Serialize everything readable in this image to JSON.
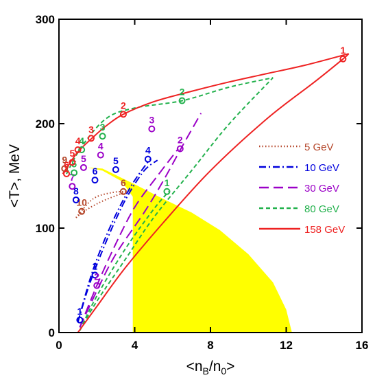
{
  "chart_data": {
    "type": "line",
    "title": "",
    "xlabel": "<nB/n0>",
    "xlabel_parts": [
      "<n",
      "B",
      "/n",
      "0",
      ">"
    ],
    "ylabel": "<T>, MeV",
    "xlim": [
      0,
      16
    ],
    "ylim": [
      0,
      300
    ],
    "x_ticks": [
      "0",
      "4",
      "8",
      "12",
      "16"
    ],
    "y_ticks": [
      "0",
      "100",
      "200",
      "300"
    ],
    "legend_position": "right",
    "shaded_region": {
      "color": "#ffff00",
      "description": "mixed-phase region",
      "boundary": [
        [
          3.9,
          0
        ],
        [
          3.9,
          130
        ],
        [
          3.3,
          145
        ],
        [
          2.3,
          155
        ],
        [
          1.5,
          158
        ],
        [
          2.3,
          157
        ],
        [
          4.0,
          142
        ],
        [
          5.5,
          128
        ],
        [
          7.0,
          115
        ],
        [
          8.5,
          98
        ],
        [
          10.0,
          75
        ],
        [
          11.3,
          48
        ],
        [
          12.0,
          22
        ],
        [
          12.3,
          0
        ]
      ]
    },
    "series": [
      {
        "name": "5 GeV",
        "color": "#b5472b",
        "dash": "1.5 3",
        "curves": [
          [
            [
              0.9,
              110
            ],
            [
              1.4,
              117
            ],
            [
              2.2,
              125
            ],
            [
              3.0,
              131
            ],
            [
              3.6,
              135
            ]
          ],
          [
            [
              0.9,
              110
            ],
            [
              1.8,
              128
            ],
            [
              2.8,
              134
            ],
            [
              3.6,
              135
            ]
          ]
        ],
        "markers": [
          {
            "x": 1.2,
            "y": 116,
            "label": "10"
          },
          {
            "x": 3.4,
            "y": 135,
            "label": "6"
          },
          {
            "x": 0.3,
            "y": 157,
            "label": "9"
          }
        ]
      },
      {
        "name": "10 GeV",
        "color": "#0000dd",
        "dash": "10 4 2 4",
        "curves": [
          [
            [
              1.0,
              10
            ],
            [
              1.5,
              40
            ],
            [
              2.0,
              65
            ],
            [
              2.8,
              100
            ],
            [
              3.6,
              130
            ],
            [
              4.5,
              155
            ],
            [
              5.2,
              165
            ]
          ],
          [
            [
              1.0,
              10
            ],
            [
              1.8,
              60
            ],
            [
              2.8,
              105
            ],
            [
              3.8,
              140
            ],
            [
              4.8,
              166
            ]
          ]
        ],
        "markers": [
          {
            "x": 1.1,
            "y": 12,
            "label": "1"
          },
          {
            "x": 1.9,
            "y": 55,
            "label": "2"
          },
          {
            "x": 0.9,
            "y": 127,
            "label": "8"
          },
          {
            "x": 1.9,
            "y": 146,
            "label": "6"
          },
          {
            "x": 3.0,
            "y": 156,
            "label": "5"
          },
          {
            "x": 4.7,
            "y": 166,
            "label": "4"
          }
        ]
      },
      {
        "name": "30 GeV",
        "color": "#9b00c7",
        "dash": "14 7",
        "curves": [
          [
            [
              1.1,
              5
            ],
            [
              2.0,
              40
            ],
            [
              3.0,
              75
            ],
            [
              4.5,
              115
            ],
            [
              5.5,
              145
            ],
            [
              6.5,
              178
            ],
            [
              7.5,
              210
            ]
          ],
          [
            [
              1.1,
              5
            ],
            [
              2.0,
              45
            ],
            [
              3.0,
              85
            ],
            [
              4.0,
              120
            ],
            [
              5.2,
              150
            ],
            [
              6.3,
              176
            ]
          ]
        ],
        "markers": [
          {
            "x": 2.0,
            "y": 45,
            "label": "2"
          },
          {
            "x": 0.7,
            "y": 140,
            "label": "7"
          },
          {
            "x": 1.3,
            "y": 158,
            "label": "5"
          },
          {
            "x": 2.2,
            "y": 170,
            "label": "4"
          },
          {
            "x": 4.9,
            "y": 195,
            "label": "3"
          },
          {
            "x": 6.4,
            "y": 176,
            "label": "2"
          }
        ]
      },
      {
        "name": "80 GeV",
        "color": "#22b14c",
        "dash": "6 4",
        "curves": [
          [
            [
              1.1,
              2
            ],
            [
              2.0,
              30
            ],
            [
              3.5,
              70
            ],
            [
              5.0,
              110
            ],
            [
              7.0,
              155
            ],
            [
              9.0,
              200
            ],
            [
              11.3,
              244
            ]
          ],
          [
            [
              1.1,
              2
            ],
            [
              2.0,
              35
            ],
            [
              3.5,
              80
            ],
            [
              5.0,
              118
            ],
            [
              5.8,
              135
            ]
          ],
          [
            [
              0.4,
              152
            ],
            [
              1.2,
              178
            ],
            [
              2.5,
              205
            ],
            [
              4.0,
              215
            ],
            [
              6.5,
              222
            ],
            [
              9.0,
              235
            ],
            [
              11.3,
              244
            ]
          ]
        ],
        "markers": [
          {
            "x": 5.7,
            "y": 135,
            "label": "1"
          },
          {
            "x": 0.8,
            "y": 153,
            "label": "5"
          },
          {
            "x": 1.2,
            "y": 175,
            "label": "4"
          },
          {
            "x": 2.3,
            "y": 188,
            "label": "3"
          },
          {
            "x": 6.5,
            "y": 222,
            "label": "2"
          }
        ]
      },
      {
        "name": "158 GeV",
        "color": "#ee2222",
        "dash": "",
        "curves": [
          [
            [
              1.0,
              0
            ],
            [
              2.0,
              25
            ],
            [
              3.5,
              62
            ],
            [
              5.5,
              105
            ],
            [
              8.0,
              155
            ],
            [
              11.0,
              205
            ],
            [
              13.5,
              240
            ],
            [
              15.0,
              262
            ],
            [
              15.3,
              267
            ]
          ],
          [
            [
              0.2,
              152
            ],
            [
              0.5,
              160
            ],
            [
              1.0,
              173
            ],
            [
              1.8,
              187
            ],
            [
              2.5,
              198
            ],
            [
              3.4,
              209
            ],
            [
              5.0,
              221
            ],
            [
              7.0,
              231
            ],
            [
              9.0,
              240
            ],
            [
              11.0,
              248
            ],
            [
              13.0,
              256
            ],
            [
              15.3,
              267
            ]
          ]
        ],
        "markers": [
          {
            "x": 15.0,
            "y": 262,
            "label": "1"
          },
          {
            "x": 3.4,
            "y": 209,
            "label": "2"
          },
          {
            "x": 1.7,
            "y": 186,
            "label": "3"
          },
          {
            "x": 1.0,
            "y": 175,
            "label": "4"
          },
          {
            "x": 0.7,
            "y": 163,
            "label": "5"
          },
          {
            "x": 0.4,
            "y": 152,
            "label": "6"
          }
        ]
      }
    ]
  }
}
